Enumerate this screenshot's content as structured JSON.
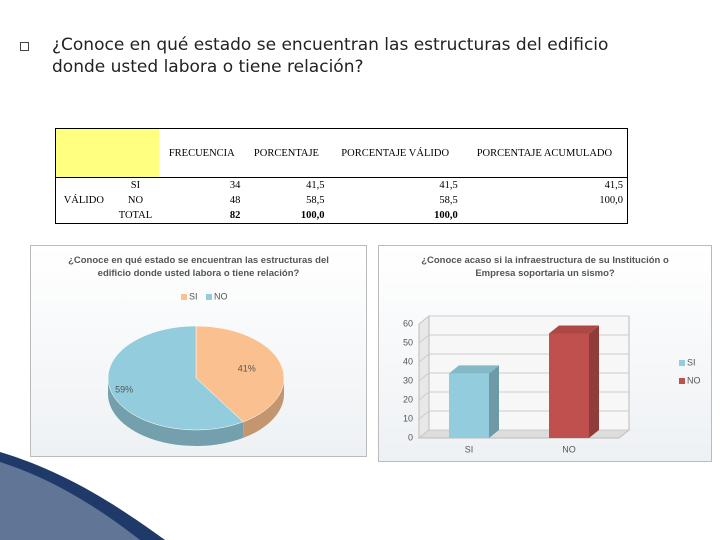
{
  "title": "¿Conoce en qué estado se encuentran las estructuras del edificio donde usted labora o tiene relación?",
  "table": {
    "columns": [
      "FRECUENCIA",
      "PORCENTAJE",
      "PORCENTAJE VÁLIDO",
      "PORCENTAJE ACUMULADO"
    ],
    "group": "VÁLIDO",
    "rows": [
      {
        "label": "SI",
        "cells": [
          "34",
          "41,5",
          "41,5",
          "41,5"
        ]
      },
      {
        "label": "NO",
        "cells": [
          "48",
          "58,5",
          "58,5",
          "100,0"
        ]
      },
      {
        "label": "TOTAL",
        "cells": [
          "82",
          "100,0",
          "100,0"
        ]
      }
    ]
  },
  "chart_data": [
    {
      "type": "pie",
      "title": "¿Conoce en qué estado se encuentran las estructuras del edificio donde usted labora o tiene relación?",
      "categories": [
        "SI",
        "NO"
      ],
      "values": [
        41,
        59
      ],
      "value_labels": [
        "41%",
        "59%"
      ],
      "colors": [
        "#fac08f",
        "#93cddd"
      ],
      "legend": "top"
    },
    {
      "type": "bar",
      "title": "¿Conoce acaso si la infraestructura de su Institución o Empresa soportaria un sismo?",
      "categories": [
        "SI",
        "NO"
      ],
      "series": [
        {
          "name": "SI",
          "color": "#93cddd",
          "values": [
            34,
            null
          ]
        },
        {
          "name": "NO",
          "color": "#c0504d",
          "values": [
            null,
            55
          ]
        }
      ],
      "ylim": [
        0,
        60
      ],
      "yticks": [
        0,
        10,
        20,
        30,
        40,
        50,
        60
      ],
      "grid": true,
      "legend": "right"
    }
  ]
}
